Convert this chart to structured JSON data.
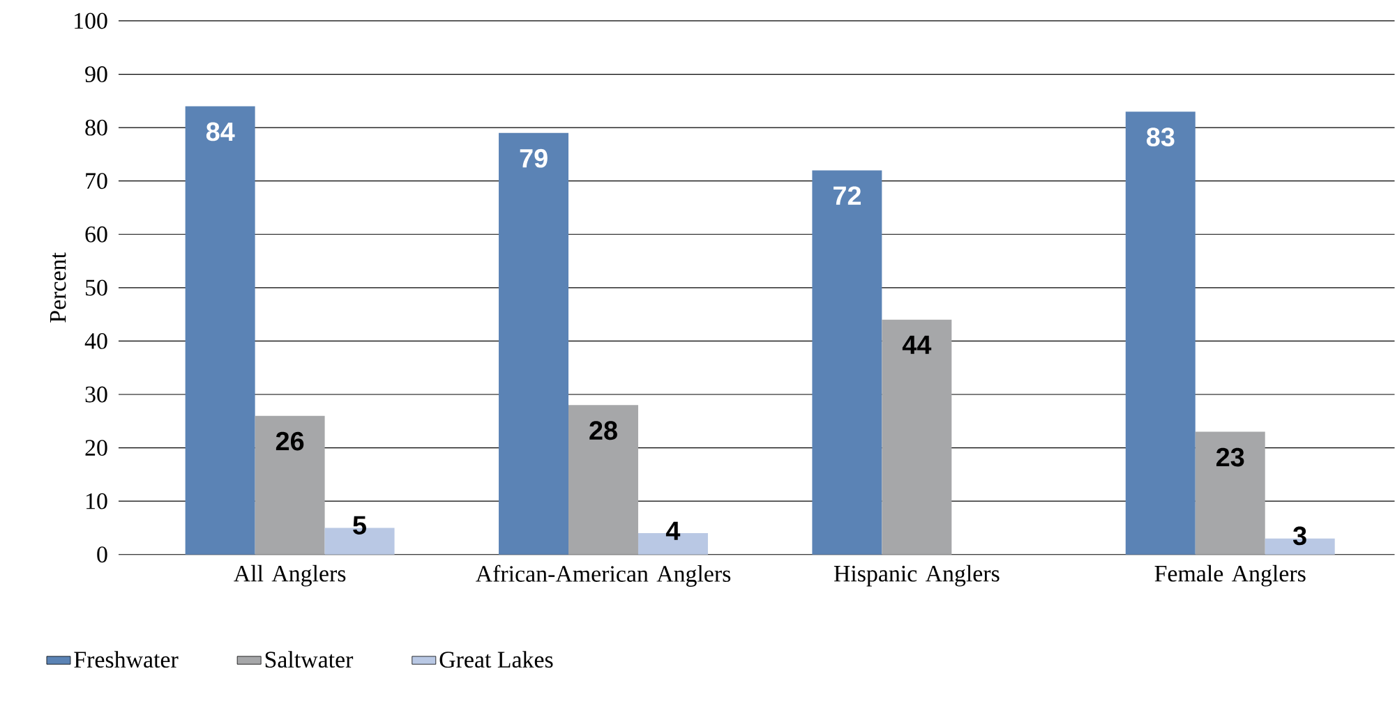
{
  "chart_data": {
    "type": "bar",
    "ylabel": "Percent",
    "categories": [
      "All Anglers",
      "African-American Anglers",
      "Hispanic Anglers",
      "Female Anglers"
    ],
    "series": [
      {
        "name": "Freshwater",
        "color": "#5b83b5",
        "values": [
          84,
          79,
          72,
          83
        ]
      },
      {
        "name": "Saltwater",
        "color": "#a6a7a9",
        "values": [
          26,
          28,
          44,
          23
        ]
      },
      {
        "name": "Great Lakes",
        "color": "#b9c8e4",
        "values": [
          5,
          4,
          null,
          3
        ]
      }
    ],
    "ylim": [
      0,
      100
    ],
    "yticks": [
      0,
      10,
      20,
      30,
      40,
      50,
      60,
      70,
      80,
      90,
      100
    ],
    "grid": "y",
    "legend": "bottom left",
    "data_labels": true
  }
}
